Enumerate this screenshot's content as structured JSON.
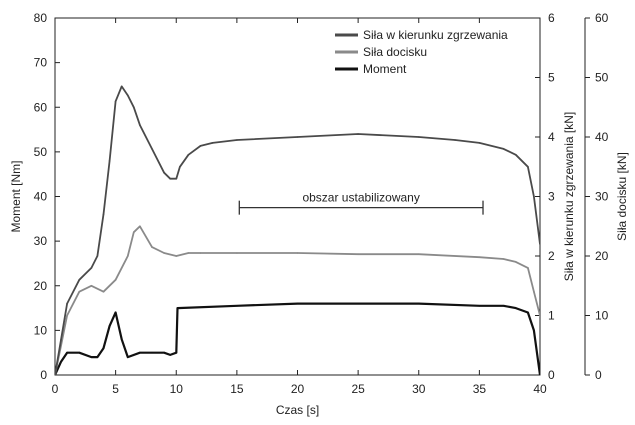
{
  "chart_data": {
    "type": "line",
    "title": "",
    "xlabel": "Czas [s]",
    "ylabel_left": "Moment [Nm]",
    "ylabel_right1": "Siła w kierunku zgrzewania [kN]",
    "ylabel_right2": "Siła docisku [kN]",
    "xlim": [
      0,
      40
    ],
    "ylim_left": [
      0,
      80
    ],
    "ylim_right1": [
      0,
      6
    ],
    "ylim_right2": [
      0,
      60
    ],
    "xticks": [
      0,
      5,
      10,
      15,
      20,
      25,
      30,
      35,
      40
    ],
    "yticks_left": [
      0,
      10,
      20,
      30,
      40,
      50,
      60,
      70,
      80
    ],
    "yticks_right1": [
      0,
      1,
      2,
      3,
      4,
      5,
      6
    ],
    "yticks_right2": [
      0,
      10,
      20,
      30,
      40,
      50,
      60
    ],
    "grid": false,
    "legend_position": "top-right",
    "annotation": {
      "text": "obszar ustabilizowany",
      "x_range": [
        15.2,
        35.3
      ],
      "y": 37.5
    },
    "series": [
      {
        "name": "Siła w kierunku zgrzewania",
        "axis": "right1",
        "color": "#4a4a4a",
        "x": [
          0,
          0.5,
          1,
          2,
          3,
          3.5,
          4,
          4.5,
          5,
          5.5,
          6,
          6.5,
          7,
          8,
          9,
          9.5,
          10,
          10.3,
          11,
          12,
          13,
          15,
          20,
          25,
          30,
          33,
          35,
          37,
          38,
          39,
          39.5,
          40
        ],
        "y": [
          0,
          0.6,
          1.2,
          1.6,
          1.8,
          2.0,
          2.7,
          3.6,
          4.6,
          4.85,
          4.7,
          4.5,
          4.2,
          3.8,
          3.4,
          3.3,
          3.3,
          3.5,
          3.7,
          3.85,
          3.9,
          3.95,
          4.0,
          4.05,
          4.0,
          3.95,
          3.9,
          3.8,
          3.7,
          3.5,
          3.0,
          2.2
        ]
      },
      {
        "name": "Siła docisku",
        "axis": "right2",
        "color": "#8a8a8a",
        "x": [
          0,
          0.5,
          1,
          2,
          3,
          4,
          5,
          6,
          6.5,
          7,
          8,
          9,
          10,
          11,
          12,
          15,
          20,
          25,
          30,
          35,
          37,
          38,
          39,
          39.5,
          40
        ],
        "y": [
          0,
          5,
          10,
          14,
          15,
          14,
          16,
          20,
          24,
          25,
          21.5,
          20.5,
          20,
          20.5,
          20.5,
          20.5,
          20.5,
          20.3,
          20.3,
          19.8,
          19.5,
          19,
          18,
          14,
          10
        ]
      },
      {
        "name": "Moment",
        "axis": "left",
        "color": "#111111",
        "x": [
          0,
          0.5,
          1,
          2,
          3,
          3.5,
          4,
          4.5,
          5,
          5.5,
          6,
          7,
          8,
          9,
          9.5,
          10,
          10.1,
          15,
          20,
          25,
          30,
          35,
          37,
          38,
          39,
          39.5,
          40
        ],
        "y": [
          0,
          3,
          5,
          5,
          4,
          4,
          6,
          11,
          14,
          8,
          4,
          5,
          5,
          5,
          4.5,
          5,
          15,
          15.5,
          16,
          16,
          16,
          15.5,
          15.5,
          15,
          14,
          10,
          0
        ]
      }
    ]
  }
}
